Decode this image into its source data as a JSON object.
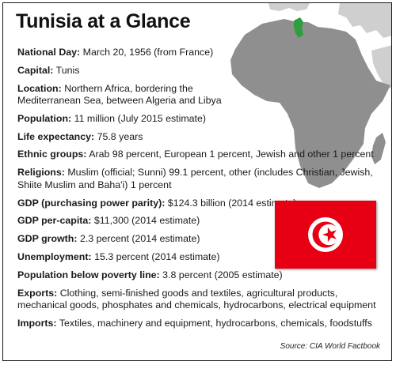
{
  "title": "Tunisia at a Glance",
  "facts": [
    {
      "label": "National Day:",
      "value": "March 20, 1956 (from France)"
    },
    {
      "label": "Capital:",
      "value": "Tunis"
    },
    {
      "label": "Location:",
      "value": "Northern Africa, bordering the Mediterranean Sea, between Algeria and Libya"
    },
    {
      "label": "Population:",
      "value": "11 million (July 2015 estimate)"
    },
    {
      "label": "Life expectancy:",
      "value": "75.8 years"
    },
    {
      "label": "Ethnic groups:",
      "value": "Arab 98 percent, European 1 percent, Jewish and other 1 percent"
    },
    {
      "label": "Religions:",
      "value": "Muslim (official; Sunni) 99.1 percent, other (includes Christian, Jewish, Shiite Muslim and Baha'i) 1 percent"
    },
    {
      "label": "GDP (purchasing power parity):",
      "value": "$124.3 billion (2014 estimate)"
    },
    {
      "label": "GDP per-capita:",
      "value": "$11,300 (2014 estimate)"
    },
    {
      "label": "GDP growth:",
      "value": "2.3 percent (2014 estimate)"
    },
    {
      "label": "Unemployment:",
      "value": "15.3 percent (2014 estimate)"
    },
    {
      "label": "Population below poverty line:",
      "value": "3.8 percent (2005 estimate)"
    },
    {
      "label": "Exports:",
      "value": "Clothing, semi-finished goods and textiles, agricultural products, mechanical goods, phosphates and chemicals, hydrocarbons, electrical equipment"
    },
    {
      "label": "Imports:",
      "value": "Textiles, machinery and equipment, hydrocarbons, chemicals, foodstuffs"
    }
  ],
  "source": "Source: CIA World Factbook",
  "colors": {
    "land": "#8f8f8f",
    "land_light": "#c9c9c9",
    "highlight": "#2e9e3e",
    "flag_red": "#e70013",
    "flag_white": "#ffffff"
  },
  "icons": {
    "map": "africa-map-icon",
    "flag": "tunisia-flag-icon"
  }
}
